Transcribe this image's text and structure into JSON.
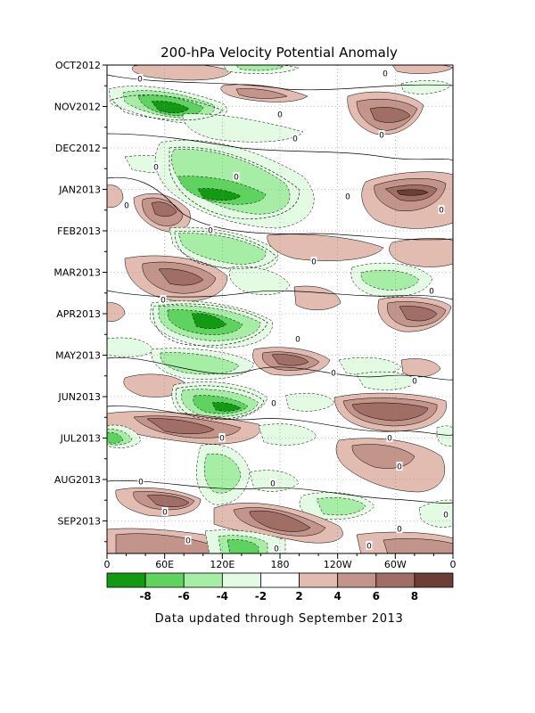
{
  "chart_data": {
    "type": "heatmap",
    "title": "200-hPa Velocity Potential Anomaly",
    "footer": "Data updated through September 2013",
    "y_ticks": [
      "OCT2012",
      "NOV2012",
      "DEC2012",
      "JAN2013",
      "FEB2013",
      "MAR2013",
      "APR2013",
      "MAY2013",
      "JUN2013",
      "JUL2013",
      "AUG2013",
      "SEP2013"
    ],
    "x_ticks": [
      "0",
      "60E",
      "120E",
      "180",
      "120W",
      "60W",
      "0"
    ],
    "longitude_ticks": [
      0,
      60,
      120,
      180,
      240,
      300,
      360
    ],
    "contour_labels": [
      "0",
      "0",
      "0",
      "0",
      "0",
      "0",
      "0",
      "0",
      "0",
      "0",
      "0",
      "0",
      "0",
      "0",
      "0",
      "0",
      "0",
      "0",
      "0",
      "0",
      "0",
      "0",
      "0",
      "0",
      "0",
      "0",
      "0",
      "0",
      "0"
    ],
    "grid": "dotted",
    "colorbar": {
      "ticks": [
        "-8",
        "-6",
        "-4",
        "-2",
        "2",
        "4",
        "6",
        "8"
      ],
      "colors": [
        "#139a13",
        "#5fd35f",
        "#a6eea6",
        "#e2fbe2",
        "#ffffff",
        "#e2bbb1",
        "#c2948a",
        "#a06e64",
        "#6d3e34"
      ]
    },
    "fill_colors": {
      "neg1": "#e2fbe2",
      "neg2": "#a6eea6",
      "neg3": "#5fd35f",
      "neg4": "#139a13",
      "pos1": "#e2bbb1",
      "pos2": "#c2948a",
      "pos3": "#a06e64",
      "pos4": "#6d3e34"
    }
  }
}
